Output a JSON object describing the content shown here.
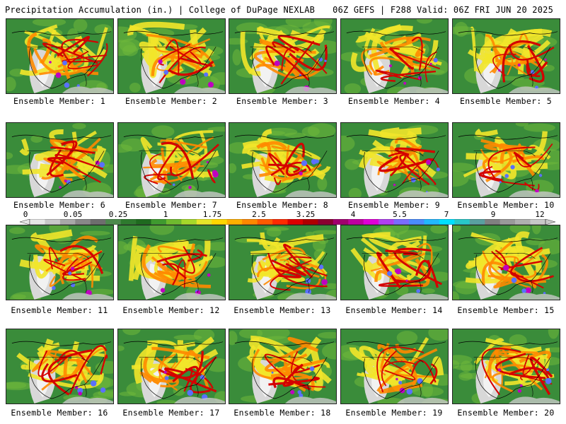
{
  "header": {
    "title": "Precipitation Accumulation (in.) | College of DuPage NEXLAB",
    "run_info": "06Z GEFS | F288 Valid: 06Z FRI JUN 20 2025"
  },
  "colorbar": {
    "tick_labels": [
      "0",
      "0.05",
      "0.25",
      "1",
      "1.75",
      "2.5",
      "3.25",
      "4",
      "5.5",
      "7",
      "9",
      "12"
    ],
    "colors": [
      "#e6e6e6",
      "#c8c8c8",
      "#a8a8a8",
      "#888888",
      "#6e6e6e",
      "#4d8a4d",
      "#2e7a2e",
      "#1f6a1f",
      "#3f9a2f",
      "#6fba2f",
      "#a6d82a",
      "#e6e62a",
      "#ffd700",
      "#ffb000",
      "#ff8800",
      "#ff5a00",
      "#ff2a00",
      "#dd0000",
      "#b00000",
      "#8a0030",
      "#a0006e",
      "#c000a0",
      "#e000d8",
      "#b040f0",
      "#7a6cff",
      "#4a8cff",
      "#22b8ff",
      "#00e0ff",
      "#28c8c8",
      "#5aa0a0",
      "#808080",
      "#9a9a9a",
      "#b0b0b0",
      "#c8c8c8"
    ]
  },
  "members": [
    {
      "label": "Ensemble Member: 1"
    },
    {
      "label": "Ensemble Member: 2"
    },
    {
      "label": "Ensemble Member: 3"
    },
    {
      "label": "Ensemble Member: 4"
    },
    {
      "label": "Ensemble Member: 5"
    },
    {
      "label": "Ensemble Member: 6"
    },
    {
      "label": "Ensemble Member: 7"
    },
    {
      "label": "Ensemble Member: 8"
    },
    {
      "label": "Ensemble Member: 9"
    },
    {
      "label": "Ensemble Member: 10"
    },
    {
      "label": "Ensemble Member: 11"
    },
    {
      "label": "Ensemble Member: 12"
    },
    {
      "label": "Ensemble Member: 13"
    },
    {
      "label": "Ensemble Member: 14"
    },
    {
      "label": "Ensemble Member: 15"
    },
    {
      "label": "Ensemble Member: 16"
    },
    {
      "label": "Ensemble Member: 17"
    },
    {
      "label": "Ensemble Member: 18"
    },
    {
      "label": "Ensemble Member: 19"
    },
    {
      "label": "Ensemble Member: 20"
    }
  ]
}
